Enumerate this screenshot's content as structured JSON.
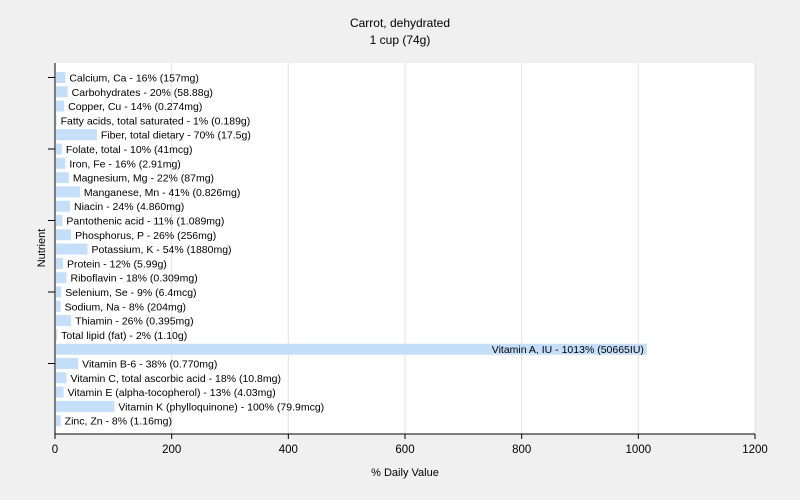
{
  "chart_data": {
    "type": "bar",
    "orientation": "horizontal",
    "title": "Carrot, dehydrated",
    "subtitle": "1 cup (74g)",
    "xlabel": "% Daily Value",
    "ylabel": "Nutrient",
    "xlim": [
      0,
      1200
    ],
    "xticks": [
      0,
      200,
      400,
      600,
      800,
      1000,
      1200
    ],
    "grid": true,
    "bar_color": "#c5dffa",
    "categories": [
      "Calcium, Ca - 16% (157mg)",
      "Carbohydrates - 20% (58.88g)",
      "Copper, Cu - 14% (0.274mg)",
      "Fatty acids, total saturated - 1% (0.189g)",
      "Fiber, total dietary - 70% (17.5g)",
      "Folate, total - 10% (41mcg)",
      "Iron, Fe - 16% (2.91mg)",
      "Magnesium, Mg - 22% (87mg)",
      "Manganese, Mn - 41% (0.826mg)",
      "Niacin - 24% (4.860mg)",
      "Pantothenic acid - 11% (1.089mg)",
      "Phosphorus, P - 26% (256mg)",
      "Potassium, K - 54% (1880mg)",
      "Protein - 12% (5.99g)",
      "Riboflavin - 18% (0.309mg)",
      "Selenium, Se - 9% (6.4mcg)",
      "Sodium, Na - 8% (204mg)",
      "Thiamin - 26% (0.395mg)",
      "Total lipid (fat) - 2% (1.10g)",
      "Vitamin A, IU - 1013% (50665IU)",
      "Vitamin B-6 - 38% (0.770mg)",
      "Vitamin C, total ascorbic acid - 18% (10.8mg)",
      "Vitamin E (alpha-tocopherol) - 13% (4.03mg)",
      "Vitamin K (phylloquinone) - 100% (79.9mcg)",
      "Zinc, Zn - 8% (1.16mg)"
    ],
    "values": [
      16,
      20,
      14,
      1,
      70,
      10,
      16,
      22,
      41,
      24,
      11,
      26,
      54,
      12,
      18,
      9,
      8,
      26,
      2,
      1013,
      38,
      18,
      13,
      100,
      8
    ]
  }
}
